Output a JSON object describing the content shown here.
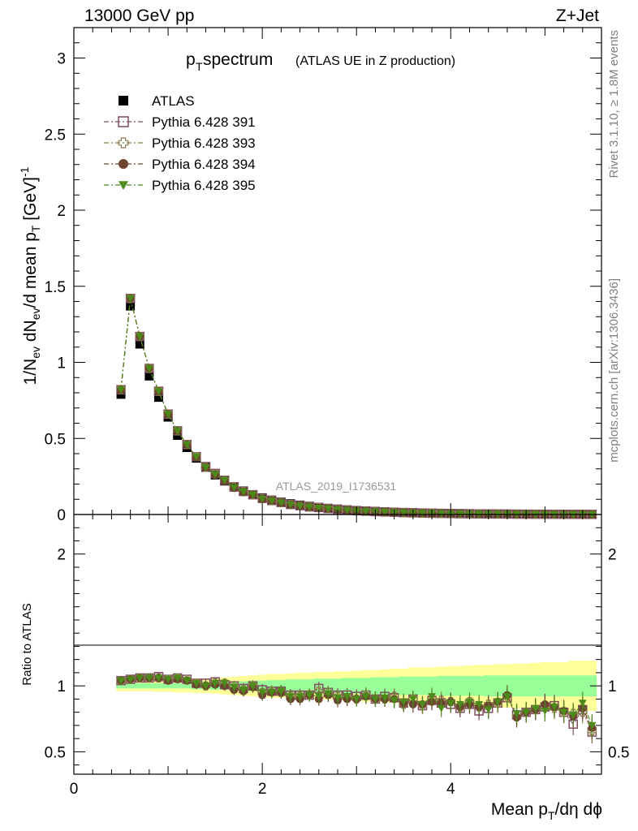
{
  "header": {
    "left": "13000 GeV pp",
    "right": "Z+Jet"
  },
  "title": {
    "main": "p",
    "sub": "T",
    "rest": " spectrum",
    "paren": "(ATLAS UE in Z production)"
  },
  "side_text": {
    "rivet": "Rivet 3.1.10, ≥ 1.8M events",
    "mcplots": "mcplots.cern.ch [arXiv:1306.3436]"
  },
  "analysis_label": "ATLAS_2019_I1736531",
  "colors": {
    "data": "#000000",
    "s391": "#7f4a60",
    "s393": "#8d7d4a",
    "s394": "#6b4530",
    "s395": "#4c8a1a",
    "band_inner": "#99ff99",
    "band_outer": "#ffff99"
  },
  "chart_data": [
    {
      "type": "scatter",
      "panel": "main",
      "ylabel": "1/N_ev dN_ev/d mean p_T [GeV]^-1",
      "xlim": [
        0,
        5.6
      ],
      "ylim": [
        0,
        3.2
      ],
      "yticks": [
        "0",
        "0.5",
        "1",
        "1.5",
        "2",
        "2.5",
        "3"
      ],
      "x": [
        0.5,
        0.6,
        0.7,
        0.8,
        0.9,
        1.0,
        1.1,
        1.2,
        1.3,
        1.4,
        1.5,
        1.6,
        1.7,
        1.8,
        1.9,
        2.0,
        2.1,
        2.2,
        2.3,
        2.4,
        2.5,
        2.6,
        2.7,
        2.8,
        2.9,
        3.0,
        3.1,
        3.2,
        3.3,
        3.4,
        3.5,
        3.6,
        3.7,
        3.8,
        3.9,
        4.0,
        4.1,
        4.2,
        4.3,
        4.4,
        4.5,
        4.6,
        4.7,
        4.8,
        4.9,
        5.0,
        5.1,
        5.2,
        5.3,
        5.4,
        5.5
      ],
      "series": [
        {
          "name": "ATLAS",
          "marker": "filled-square",
          "values": [
            0.79,
            1.37,
            1.12,
            0.91,
            0.77,
            0.64,
            0.52,
            0.44,
            0.37,
            0.31,
            0.26,
            0.22,
            0.18,
            0.155,
            0.13,
            0.11,
            0.095,
            0.082,
            0.071,
            0.062,
            0.054,
            0.047,
            0.041,
            0.036,
            0.031,
            0.027,
            0.024,
            0.021,
            0.018,
            0.016,
            0.014,
            0.012,
            0.011,
            0.0095,
            0.0083,
            0.0073,
            0.0064,
            0.0056,
            0.0049,
            0.0043,
            0.0038,
            0.0033,
            0.0029,
            0.0026,
            0.0023,
            0.002,
            0.0018,
            0.0016,
            0.0014,
            0.0012,
            0.0011
          ]
        },
        {
          "name": "Pythia 6.428 391",
          "marker": "open-square",
          "values": [
            0.82,
            1.42,
            1.17,
            0.96,
            0.81,
            0.66,
            0.55,
            0.46,
            0.38,
            0.315,
            0.27,
            0.225,
            0.182,
            0.152,
            0.13,
            0.106,
            0.092,
            0.079,
            0.066,
            0.058,
            0.05,
            0.046,
            0.039,
            0.033,
            0.029,
            0.025,
            0.022,
            0.019,
            0.017,
            0.015,
            0.012,
            0.011,
            0.0093,
            0.0084,
            0.0072,
            0.0063,
            0.0053,
            0.0048,
            0.004,
            0.0036,
            0.0034,
            0.003,
            0.0023,
            0.0021,
            0.0019,
            0.0017,
            0.0015,
            0.0013,
            0.001,
            0.001,
            0.00072
          ]
        },
        {
          "name": "Pythia 6.428 393",
          "marker": "open-cross",
          "values": [
            0.82,
            1.42,
            1.17,
            0.96,
            0.81,
            0.66,
            0.55,
            0.46,
            0.38,
            0.31,
            0.265,
            0.225,
            0.18,
            0.15,
            0.13,
            0.104,
            0.091,
            0.078,
            0.065,
            0.057,
            0.05,
            0.045,
            0.039,
            0.033,
            0.028,
            0.024,
            0.022,
            0.019,
            0.016,
            0.015,
            0.012,
            0.011,
            0.0094,
            0.0085,
            0.0074,
            0.0064,
            0.0054,
            0.0049,
            0.0041,
            0.0037,
            0.0033,
            0.003,
            0.0022,
            0.0021,
            0.0019,
            0.0017,
            0.0015,
            0.0013,
            0.0011,
            0.001,
            0.00073
          ]
        },
        {
          "name": "Pythia 6.428 394",
          "marker": "filled-circle",
          "values": [
            0.82,
            1.42,
            1.17,
            0.96,
            0.81,
            0.66,
            0.55,
            0.46,
            0.375,
            0.31,
            0.26,
            0.22,
            0.174,
            0.148,
            0.13,
            0.102,
            0.09,
            0.078,
            0.064,
            0.056,
            0.05,
            0.042,
            0.038,
            0.032,
            0.028,
            0.024,
            0.022,
            0.019,
            0.016,
            0.014,
            0.012,
            0.0102,
            0.0094,
            0.0083,
            0.0072,
            0.0064,
            0.0054,
            0.0048,
            0.0041,
            0.0037,
            0.0034,
            0.0031,
            0.0022,
            0.0021,
            0.0019,
            0.0017,
            0.0015,
            0.0013,
            0.0011,
            0.001,
            0.00075
          ]
        },
        {
          "name": "Pythia 6.428 395",
          "marker": "filled-triangle-down",
          "values": [
            0.82,
            1.42,
            1.17,
            0.96,
            0.81,
            0.66,
            0.55,
            0.46,
            0.38,
            0.31,
            0.265,
            0.225,
            0.178,
            0.15,
            0.13,
            0.103,
            0.09,
            0.078,
            0.066,
            0.056,
            0.05,
            0.043,
            0.038,
            0.033,
            0.028,
            0.024,
            0.022,
            0.019,
            0.016,
            0.014,
            0.012,
            0.011,
            0.0093,
            0.0088,
            0.0068,
            0.0063,
            0.0055,
            0.0049,
            0.0042,
            0.0035,
            0.0034,
            0.003,
            0.0023,
            0.0021,
            0.0019,
            0.0016,
            0.0016,
            0.0013,
            0.0011,
            0.0011,
            0.00077
          ]
        }
      ]
    },
    {
      "type": "scatter",
      "panel": "ratio",
      "xlabel": "Mean p_T/dη dϕ",
      "ylabel": "Ratio to ATLAS",
      "xlim": [
        0,
        5.6
      ],
      "ylim": [
        0.33,
        2.3
      ],
      "xticks": [
        "0",
        "2",
        "4"
      ],
      "yticks": [
        "0.5",
        "1",
        "2"
      ],
      "x": [
        0.5,
        0.6,
        0.7,
        0.8,
        0.9,
        1.0,
        1.1,
        1.2,
        1.3,
        1.4,
        1.5,
        1.6,
        1.7,
        1.8,
        1.9,
        2.0,
        2.1,
        2.2,
        2.3,
        2.4,
        2.5,
        2.6,
        2.7,
        2.8,
        2.9,
        3.0,
        3.1,
        3.2,
        3.3,
        3.4,
        3.5,
        3.6,
        3.7,
        3.8,
        3.9,
        4.0,
        4.1,
        4.2,
        4.3,
        4.4,
        4.5,
        4.6,
        4.7,
        4.8,
        4.9,
        5.0,
        5.1,
        5.2,
        5.3,
        5.4,
        5.5
      ],
      "bands": {
        "inner_half_width": [
          0.02,
          0.02,
          0.02,
          0.02,
          0.02,
          0.02,
          0.02,
          0.02,
          0.025,
          0.025,
          0.03,
          0.03,
          0.035,
          0.035,
          0.04,
          0.04,
          0.045,
          0.045,
          0.05,
          0.05,
          0.05,
          0.055,
          0.055,
          0.055,
          0.06,
          0.06,
          0.06,
          0.065,
          0.065,
          0.065,
          0.07,
          0.07,
          0.07,
          0.07,
          0.075,
          0.075,
          0.075,
          0.075,
          0.075,
          0.08,
          0.08,
          0.08,
          0.08,
          0.08,
          0.08,
          0.08,
          0.08,
          0.08,
          0.08,
          0.08,
          0.08
        ],
        "outer_half_width": [
          0.04,
          0.04,
          0.04,
          0.04,
          0.045,
          0.045,
          0.05,
          0.05,
          0.055,
          0.055,
          0.06,
          0.065,
          0.07,
          0.075,
          0.08,
          0.085,
          0.09,
          0.09,
          0.095,
          0.1,
          0.1,
          0.105,
          0.105,
          0.11,
          0.11,
          0.115,
          0.12,
          0.12,
          0.125,
          0.13,
          0.13,
          0.14,
          0.14,
          0.14,
          0.145,
          0.15,
          0.15,
          0.155,
          0.16,
          0.16,
          0.165,
          0.165,
          0.17,
          0.17,
          0.175,
          0.18,
          0.18,
          0.18,
          0.19,
          0.19,
          0.19
        ]
      },
      "series": [
        {
          "name": "Pythia 6.428 391",
          "values": [
            1.04,
            1.05,
            1.06,
            1.06,
            1.07,
            1.05,
            1.06,
            1.05,
            1.02,
            1.02,
            1.03,
            1.01,
            1.0,
            0.98,
            1.0,
            0.97,
            0.96,
            0.96,
            0.93,
            0.93,
            0.93,
            0.98,
            0.95,
            0.93,
            0.93,
            0.92,
            0.93,
            0.9,
            0.92,
            0.91,
            0.87,
            0.9,
            0.85,
            0.89,
            0.87,
            0.86,
            0.83,
            0.86,
            0.81,
            0.83,
            0.87,
            0.91,
            0.78,
            0.8,
            0.82,
            0.84,
            0.85,
            0.8,
            0.71,
            0.82,
            0.65
          ]
        },
        {
          "name": "Pythia 6.428 393",
          "values": [
            1.04,
            1.05,
            1.06,
            1.06,
            1.06,
            1.05,
            1.06,
            1.05,
            1.02,
            1.0,
            1.02,
            1.02,
            1.0,
            0.97,
            1.0,
            0.95,
            0.96,
            0.95,
            0.92,
            0.92,
            0.93,
            0.96,
            0.95,
            0.92,
            0.91,
            0.9,
            0.93,
            0.9,
            0.9,
            0.92,
            0.86,
            0.9,
            0.85,
            0.9,
            0.89,
            0.88,
            0.84,
            0.88,
            0.84,
            0.86,
            0.87,
            0.91,
            0.77,
            0.8,
            0.82,
            0.84,
            0.83,
            0.8,
            0.79,
            0.8,
            0.66
          ]
        },
        {
          "name": "Pythia 6.428 394",
          "values": [
            1.04,
            1.05,
            1.06,
            1.06,
            1.06,
            1.04,
            1.05,
            1.04,
            1.01,
            1.0,
            1.01,
            1.0,
            0.97,
            0.96,
            0.99,
            0.93,
            0.95,
            0.95,
            0.9,
            0.9,
            0.93,
            0.9,
            0.93,
            0.89,
            0.9,
            0.9,
            0.92,
            0.9,
            0.9,
            0.9,
            0.87,
            0.86,
            0.86,
            0.88,
            0.87,
            0.88,
            0.84,
            0.86,
            0.84,
            0.85,
            0.88,
            0.93,
            0.76,
            0.8,
            0.82,
            0.86,
            0.84,
            0.81,
            0.77,
            0.83,
            0.68
          ]
        },
        {
          "name": "Pythia 6.428 395",
          "values": [
            1.04,
            1.05,
            1.06,
            1.06,
            1.06,
            1.05,
            1.06,
            1.04,
            1.02,
            1.0,
            1.02,
            1.02,
            0.99,
            0.97,
            1.0,
            0.95,
            0.95,
            0.96,
            0.92,
            0.92,
            0.93,
            0.92,
            0.94,
            0.91,
            0.92,
            0.9,
            0.92,
            0.9,
            0.91,
            0.89,
            0.88,
            0.9,
            0.86,
            0.92,
            0.83,
            0.87,
            0.86,
            0.88,
            0.86,
            0.82,
            0.88,
            0.92,
            0.79,
            0.8,
            0.83,
            0.81,
            0.84,
            0.8,
            0.78,
            0.87,
            0.7
          ]
        }
      ]
    }
  ]
}
